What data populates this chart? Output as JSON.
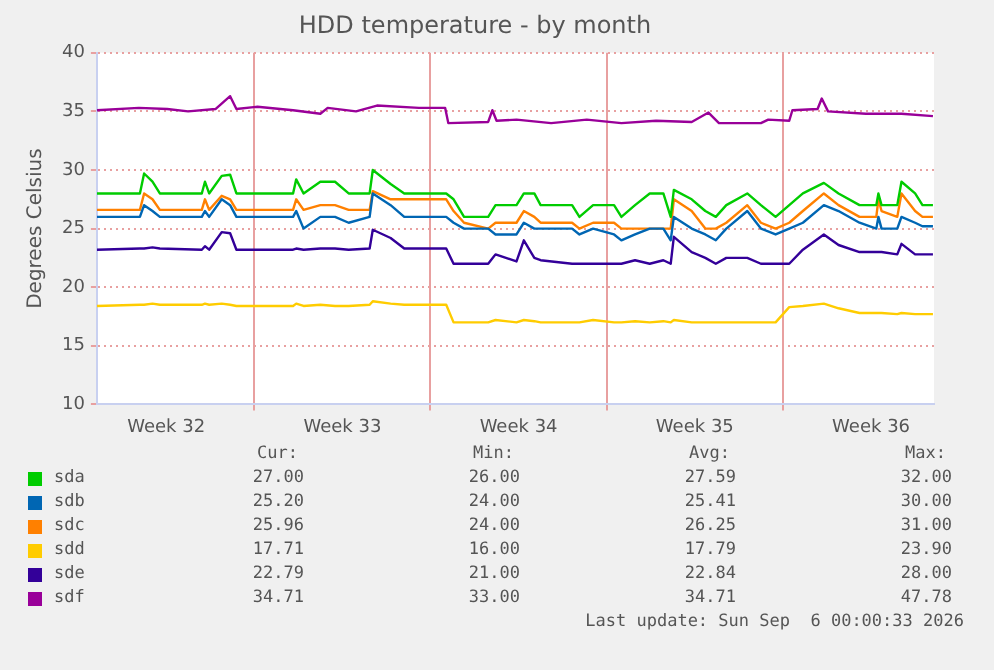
{
  "chart_data": {
    "type": "line",
    "title": "HDD temperature - by month",
    "ylabel": "Degrees Celsius",
    "xlim": [
      "2026-08-03T18:00",
      "2026-09-06T00:00"
    ],
    "xticks": [
      {
        "value": "2026-08-06T12:00",
        "label": "Week 32"
      },
      {
        "value": "2026-08-10",
        "label": null
      },
      {
        "value": "2026-08-13T12:00",
        "label": "Week 33"
      },
      {
        "value": "2026-08-17",
        "label": null
      },
      {
        "value": "2026-08-20T12:00",
        "label": "Week 34"
      },
      {
        "value": "2026-08-24",
        "label": null
      },
      {
        "value": "2026-08-27T12:00",
        "label": "Week 35"
      },
      {
        "value": "2026-08-31",
        "label": null
      },
      {
        "value": "2026-09-03T12:00",
        "label": "Week 36"
      }
    ],
    "ylim": [
      10,
      40
    ],
    "yticks": [
      10,
      15,
      20,
      25,
      30,
      35,
      40
    ],
    "grid": true,
    "legend": "bottom",
    "marker": "none",
    "line_style": "solid",
    "x": [
      "2026-08-03T18:00",
      "2026-08-05T11:00",
      "2026-08-05T15:00",
      "2026-08-05T23:00",
      "2026-08-06T06:00",
      "2026-08-07T22:00",
      "2026-08-08T01:00",
      "2026-08-08T05:00",
      "2026-08-08T17:00",
      "2026-08-09T01:00",
      "2026-08-09T07:00",
      "2026-08-11T13:00",
      "2026-08-11T16:00",
      "2026-08-11T23:00",
      "2026-08-12T15:00",
      "2026-08-13T05:00",
      "2026-08-13T18:00",
      "2026-08-14T14:00",
      "2026-08-14T17:00",
      "2026-08-15T10:00",
      "2026-08-15T23:00",
      "2026-08-17T15:00",
      "2026-08-17T22:00",
      "2026-08-18T08:00",
      "2026-08-19T07:00",
      "2026-08-19T14:00",
      "2026-08-20T10:00",
      "2026-08-20T17:00",
      "2026-08-21T03:00",
      "2026-08-21T09:00",
      "2026-08-22T15:00",
      "2026-08-22T22:00",
      "2026-08-23T11:00",
      "2026-08-24T07:00",
      "2026-08-24T14:00",
      "2026-08-25T03:00",
      "2026-08-25T17:00",
      "2026-08-26T06:00",
      "2026-08-26T13:00",
      "2026-08-26T16:00",
      "2026-08-27T09:00",
      "2026-08-27T22:00",
      "2026-08-28T08:00",
      "2026-08-28T18:00",
      "2026-08-29T14:00",
      "2026-08-30T03:00",
      "2026-08-30T17:00",
      "2026-08-31T06:00",
      "2026-08-31T19:00",
      "2026-09-01T15:00",
      "2026-09-02T05:00",
      "2026-09-03T01:00",
      "2026-09-03T17:00",
      "2026-09-03T19:00",
      "2026-09-03T22:00",
      "2026-09-04T13:00",
      "2026-09-04T17:00",
      "2026-09-05T06:00",
      "2026-09-05T13:00",
      "2026-09-05T23:00"
    ],
    "series": [
      {
        "name": "sda",
        "color": "#00cc00",
        "values": [
          28,
          28,
          29.7,
          29,
          28,
          28,
          29,
          28,
          29.5,
          29.6,
          28,
          28,
          29.2,
          28,
          29,
          29,
          28,
          28,
          30,
          28.8,
          28,
          28,
          27.5,
          26,
          26,
          27,
          27,
          28,
          28,
          27,
          27,
          26,
          27,
          27,
          26,
          27,
          28,
          28,
          26,
          28.3,
          27.5,
          26.5,
          26,
          27,
          28,
          27,
          26,
          27,
          28,
          28.9,
          28,
          27,
          27,
          28,
          27,
          27,
          29,
          28,
          27,
          27
        ]
      },
      {
        "name": "sdb",
        "color": "#0066b3",
        "values": [
          26,
          26,
          27,
          26.5,
          26,
          26,
          26.5,
          26,
          27.5,
          27,
          26,
          26,
          26.5,
          25,
          26,
          26,
          25.5,
          26,
          28,
          27,
          26,
          26,
          25.5,
          25,
          25,
          24.5,
          24.5,
          25.5,
          25,
          25,
          25,
          24.5,
          25,
          24.5,
          24,
          24.5,
          25,
          25,
          24,
          26,
          25,
          24.5,
          24,
          25,
          26.5,
          25,
          24.5,
          25,
          25.5,
          27,
          26.5,
          25.5,
          25,
          26,
          25,
          25,
          26,
          25.5,
          25.2,
          25.2
        ]
      },
      {
        "name": "sdc",
        "color": "#ff8000",
        "values": [
          26.6,
          26.6,
          28,
          27.5,
          26.6,
          26.6,
          27.5,
          26.6,
          27.8,
          27.5,
          26.6,
          26.6,
          27.5,
          26.6,
          27,
          27,
          26.6,
          26.6,
          28.2,
          27.5,
          27.5,
          27.5,
          26.5,
          25.5,
          25,
          25.5,
          25.5,
          26.5,
          26,
          25.5,
          25.5,
          25,
          25.5,
          25.5,
          25,
          25,
          25,
          25,
          25,
          27.5,
          26.5,
          25,
          25,
          25.5,
          27,
          25.5,
          25,
          25.5,
          26.5,
          28,
          27,
          26,
          26,
          27.5,
          26.5,
          26,
          28,
          26.5,
          26,
          26
        ]
      },
      {
        "name": "sdd",
        "color": "#ffcc00",
        "values": [
          18.4,
          18.5,
          18.5,
          18.6,
          18.5,
          18.5,
          18.6,
          18.5,
          18.6,
          18.5,
          18.4,
          18.4,
          18.6,
          18.4,
          18.5,
          18.4,
          18.4,
          18.5,
          18.8,
          18.6,
          18.5,
          18.5,
          17,
          17,
          17,
          17.2,
          17,
          17.2,
          17.1,
          17,
          17,
          17,
          17.2,
          17,
          17,
          17.1,
          17,
          17.1,
          17,
          17.2,
          17,
          17,
          17,
          17,
          17,
          17,
          17,
          18.3,
          18.4,
          18.6,
          18.2,
          17.8,
          17.8,
          17.8,
          17.8,
          17.7,
          17.8,
          17.7,
          17.7,
          17.7
        ]
      },
      {
        "name": "sde",
        "color": "#330099",
        "values": [
          23.2,
          23.3,
          23.3,
          23.4,
          23.3,
          23.2,
          23.5,
          23.2,
          24.7,
          24.6,
          23.2,
          23.2,
          23.3,
          23.2,
          23.3,
          23.3,
          23.2,
          23.3,
          24.9,
          24.2,
          23.3,
          23.3,
          22,
          22,
          22,
          22.8,
          22.2,
          24,
          22.5,
          22.3,
          22,
          22,
          22,
          22,
          22,
          22.3,
          22,
          22.3,
          22,
          24.3,
          23,
          22.5,
          22,
          22.5,
          22.5,
          22,
          22,
          22,
          23.2,
          24.5,
          23.6,
          23,
          23,
          23,
          23,
          22.8,
          23.7,
          22.8,
          22.8,
          22.8
        ]
      },
      {
        "name": "sdf",
        "color": "#990099",
        "x": [
          "2026-08-03T18:00",
          "2026-08-05T10:00",
          "2026-08-06T13:00",
          "2026-08-07T09:00",
          "2026-08-08T11:00",
          "2026-08-09T01:00",
          "2026-08-09T07:00",
          "2026-08-10T03:00",
          "2026-08-11T13:00",
          "2026-08-12T15:00",
          "2026-08-12T22:00",
          "2026-08-14T01:00",
          "2026-08-14T21:00",
          "2026-08-16T13:00",
          "2026-08-17T14:00",
          "2026-08-17T17:00",
          "2026-08-19T07:00",
          "2026-08-19T11:00",
          "2026-08-19T15:00",
          "2026-08-20T10:00",
          "2026-08-21T19:00",
          "2026-08-23T05:00",
          "2026-08-24T14:00",
          "2026-08-25T23:00",
          "2026-08-27T09:00",
          "2026-08-28T01:00",
          "2026-08-28T11:00",
          "2026-08-30T03:00",
          "2026-08-30T10:00",
          "2026-08-31T06:00",
          "2026-08-31T09:00",
          "2026-09-01T09:00",
          "2026-09-01T13:00",
          "2026-09-01T19:00",
          "2026-09-03T07:00",
          "2026-09-04T17:00",
          "2026-09-05T23:00"
        ],
        "values": [
          35.1,
          35.3,
          35.2,
          35,
          35.2,
          36.3,
          35.2,
          35.4,
          35.1,
          34.8,
          35.3,
          35,
          35.5,
          35.3,
          35.3,
          34,
          34.1,
          35.1,
          34.2,
          34.3,
          34,
          34.3,
          34,
          34.2,
          34.1,
          34.9,
          34,
          34,
          34.3,
          34.2,
          35.1,
          35.2,
          36.1,
          35,
          34.8,
          34.8,
          34.6
        ]
      }
    ],
    "annotations": [
      "Cur:",
      "Min:",
      "Avg:",
      "Max:",
      "27.00",
      "26.00",
      "27.59",
      "32.00",
      "25.20",
      "24.00",
      "25.41",
      "30.00",
      "25.96",
      "24.00",
      "26.25",
      "31.00",
      "17.71",
      "16.00",
      "17.79",
      "23.90",
      "22.79",
      "21.00",
      "22.84",
      "28.00",
      "34.71",
      "33.00",
      "34.71",
      "47.78",
      "Last update: Sun Sep  6 00:00:33 2026"
    ]
  }
}
